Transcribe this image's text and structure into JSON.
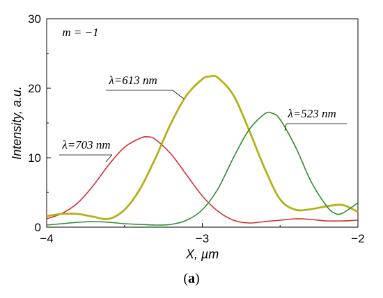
{
  "chart_data": {
    "type": "line",
    "title": "",
    "xlabel": "X, µm",
    "ylabel": "Intensity, a.u.",
    "xlim": [
      -4,
      -2
    ],
    "ylim": [
      0,
      30
    ],
    "x_ticks": [
      -4,
      -3,
      -2
    ],
    "x_tick_labels": [
      "−4",
      "−3",
      "−2"
    ],
    "y_ticks": [
      0,
      10,
      20,
      30
    ],
    "y_tick_labels": [
      "0",
      "10",
      "20",
      "30"
    ],
    "grid": false,
    "annotation_mode": "m = −1",
    "series": [
      {
        "name": "λ=703 nm",
        "color": "#d32f2f",
        "points": [
          [
            -4.0,
            1.2
          ],
          [
            -3.9,
            2.0
          ],
          [
            -3.8,
            3.5
          ],
          [
            -3.7,
            6.0
          ],
          [
            -3.6,
            9.0
          ],
          [
            -3.5,
            11.5
          ],
          [
            -3.4,
            12.8
          ],
          [
            -3.35,
            13.0
          ],
          [
            -3.3,
            12.6
          ],
          [
            -3.2,
            10.5
          ],
          [
            -3.1,
            7.5
          ],
          [
            -3.0,
            4.5
          ],
          [
            -2.9,
            2.3
          ],
          [
            -2.8,
            1.0
          ],
          [
            -2.7,
            0.6
          ],
          [
            -2.6,
            0.8
          ],
          [
            -2.5,
            1.0
          ],
          [
            -2.4,
            1.2
          ],
          [
            -2.3,
            1.1
          ],
          [
            -2.2,
            0.9
          ],
          [
            -2.1,
            0.9
          ],
          [
            -2.0,
            1.0
          ]
        ]
      },
      {
        "name": "λ=613 nm",
        "color": "#b5b019",
        "points": [
          [
            -4.0,
            1.6
          ],
          [
            -3.9,
            1.9
          ],
          [
            -3.8,
            1.9
          ],
          [
            -3.7,
            1.5
          ],
          [
            -3.6,
            1.2
          ],
          [
            -3.5,
            2.5
          ],
          [
            -3.4,
            5.5
          ],
          [
            -3.3,
            10.0
          ],
          [
            -3.2,
            15.0
          ],
          [
            -3.1,
            19.0
          ],
          [
            -3.0,
            21.3
          ],
          [
            -2.95,
            21.7
          ],
          [
            -2.9,
            21.5
          ],
          [
            -2.8,
            19.0
          ],
          [
            -2.7,
            14.0
          ],
          [
            -2.6,
            8.5
          ],
          [
            -2.5,
            4.0
          ],
          [
            -2.4,
            2.5
          ],
          [
            -2.3,
            2.6
          ],
          [
            -2.2,
            3.0
          ],
          [
            -2.1,
            3.2
          ],
          [
            -2.0,
            2.2
          ]
        ]
      },
      {
        "name": "λ=523 nm",
        "color": "#2e8b2e",
        "points": [
          [
            -4.0,
            0.3
          ],
          [
            -3.9,
            0.5
          ],
          [
            -3.8,
            0.7
          ],
          [
            -3.7,
            0.8
          ],
          [
            -3.6,
            0.7
          ],
          [
            -3.5,
            0.5
          ],
          [
            -3.4,
            0.4
          ],
          [
            -3.3,
            0.3
          ],
          [
            -3.2,
            0.4
          ],
          [
            -3.1,
            1.0
          ],
          [
            -3.0,
            2.5
          ],
          [
            -2.9,
            5.5
          ],
          [
            -2.8,
            10.0
          ],
          [
            -2.7,
            14.0
          ],
          [
            -2.6,
            16.3
          ],
          [
            -2.55,
            16.4
          ],
          [
            -2.5,
            15.5
          ],
          [
            -2.4,
            11.5
          ],
          [
            -2.3,
            6.5
          ],
          [
            -2.2,
            3.0
          ],
          [
            -2.15,
            2.0
          ],
          [
            -2.1,
            2.0
          ],
          [
            -2.0,
            3.5
          ]
        ]
      }
    ],
    "labels": [
      {
        "text": "λ=703 nm",
        "series": 0
      },
      {
        "text": "λ=613 nm",
        "series": 1
      },
      {
        "text": "λ=523 nm",
        "series": 2
      }
    ],
    "caption": "(a)"
  }
}
